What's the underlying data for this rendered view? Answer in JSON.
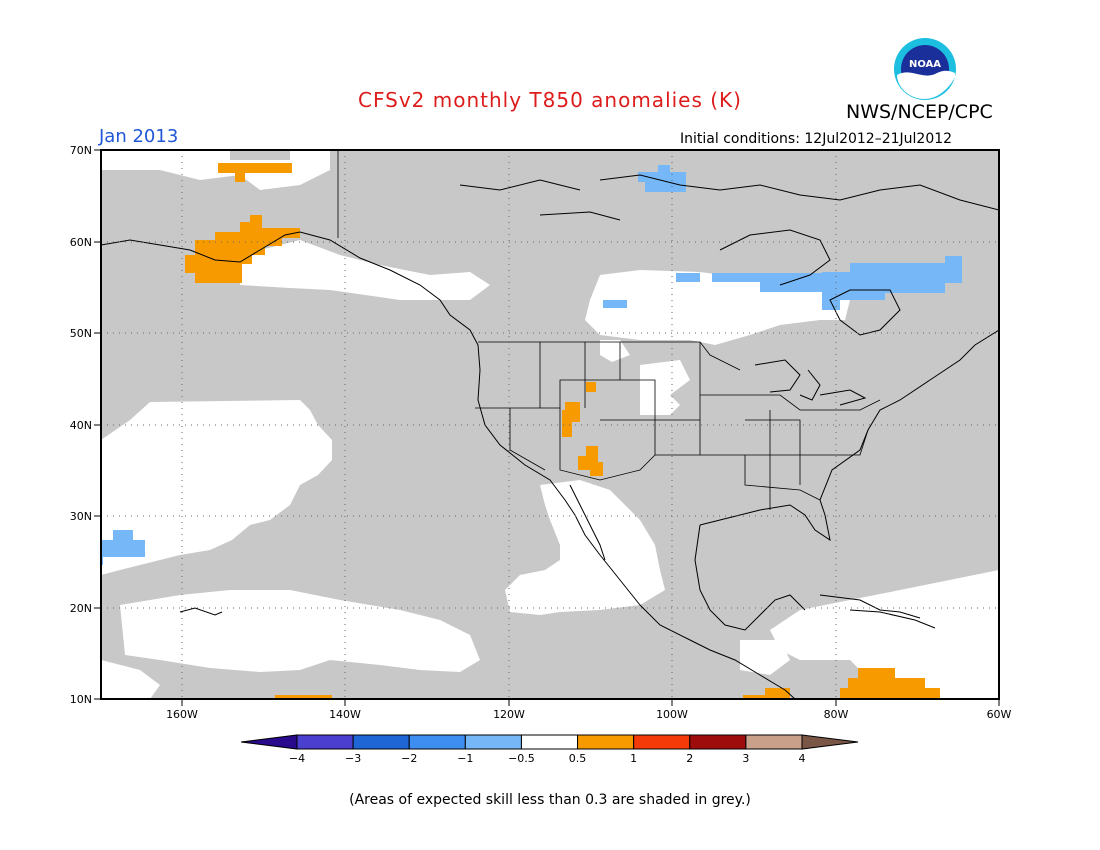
{
  "title": "CFSv2 monthly T850 anomalies (K)",
  "agency": "NWS/NCEP/CPC",
  "logo_text": "NOAA",
  "period": "Jan 2013",
  "initial_conditions": "Initial conditions: 12Jul2012–21Jul2012",
  "note": "(Areas of expected skill less than 0.3 are shaded in grey.)",
  "colors": {
    "title": "#dd1c1c",
    "period": "#1f57d6",
    "grey_mask": "#c8c8c8",
    "ocean_white": "#ffffff",
    "coastline": "#000000"
  },
  "axes": {
    "lat_labels": [
      "70N",
      "60N",
      "50N",
      "40N",
      "30N",
      "20N",
      "10N"
    ],
    "lon_labels": [
      "160W",
      "140W",
      "120W",
      "100W",
      "80W",
      "60W"
    ],
    "lat_range": [
      10,
      70
    ],
    "lon_range": [
      "170W",
      "60W"
    ]
  },
  "legend": {
    "tick_labels": [
      "−4",
      "−3",
      "−2",
      "−1",
      "−0.5",
      "0.5",
      "1",
      "2",
      "3",
      "4"
    ],
    "colors": [
      "#2a0a8c",
      "#4b3fd0",
      "#1e66d6",
      "#3d8ef0",
      "#76b7f7",
      "#ffffff",
      "#f79a00",
      "#f53a0a",
      "#9e0c0c",
      "#c9a08a",
      "#7a5646"
    ]
  },
  "anomaly_regions": [
    {
      "name": "western Alaska",
      "category": "0.5 to 1"
    },
    {
      "name": "Arctic coast north of Alaska",
      "category": "0.5 to 1"
    },
    {
      "name": "Utah",
      "category": "0.5 to 1"
    },
    {
      "name": "Arizona / New Mexico",
      "category": "0.5 to 1"
    },
    {
      "name": "Caribbean",
      "category": "0.5 to 1"
    },
    {
      "name": "Hudson Bay / northern Quebec",
      "category": "-1 to -0.5"
    },
    {
      "name": "Arctic archipelago",
      "category": "-1 to -0.5"
    },
    {
      "name": "central Pacific near 25N",
      "category": "-1 to -0.5"
    }
  ]
}
